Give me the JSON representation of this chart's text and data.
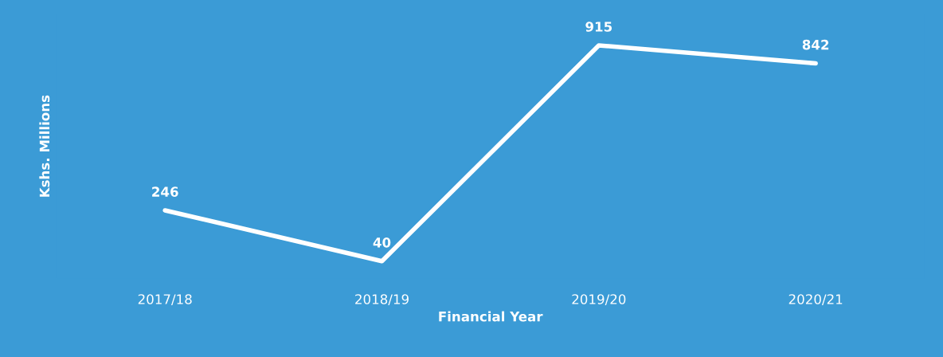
{
  "chart_data": {
    "type": "line",
    "xlabel": "Financial Year",
    "ylabel": "Kshs. Millions",
    "categories": [
      "2017/18",
      "2018/19",
      "2019/20",
      "2020/21"
    ],
    "series": [
      {
        "color": "#ffffff",
        "values": [
          246,
          40,
          915,
          842
        ]
      }
    ],
    "data_labels": true,
    "grid": false,
    "marker": "none",
    "line_style": "solid",
    "tick_labels": "x"
  }
}
